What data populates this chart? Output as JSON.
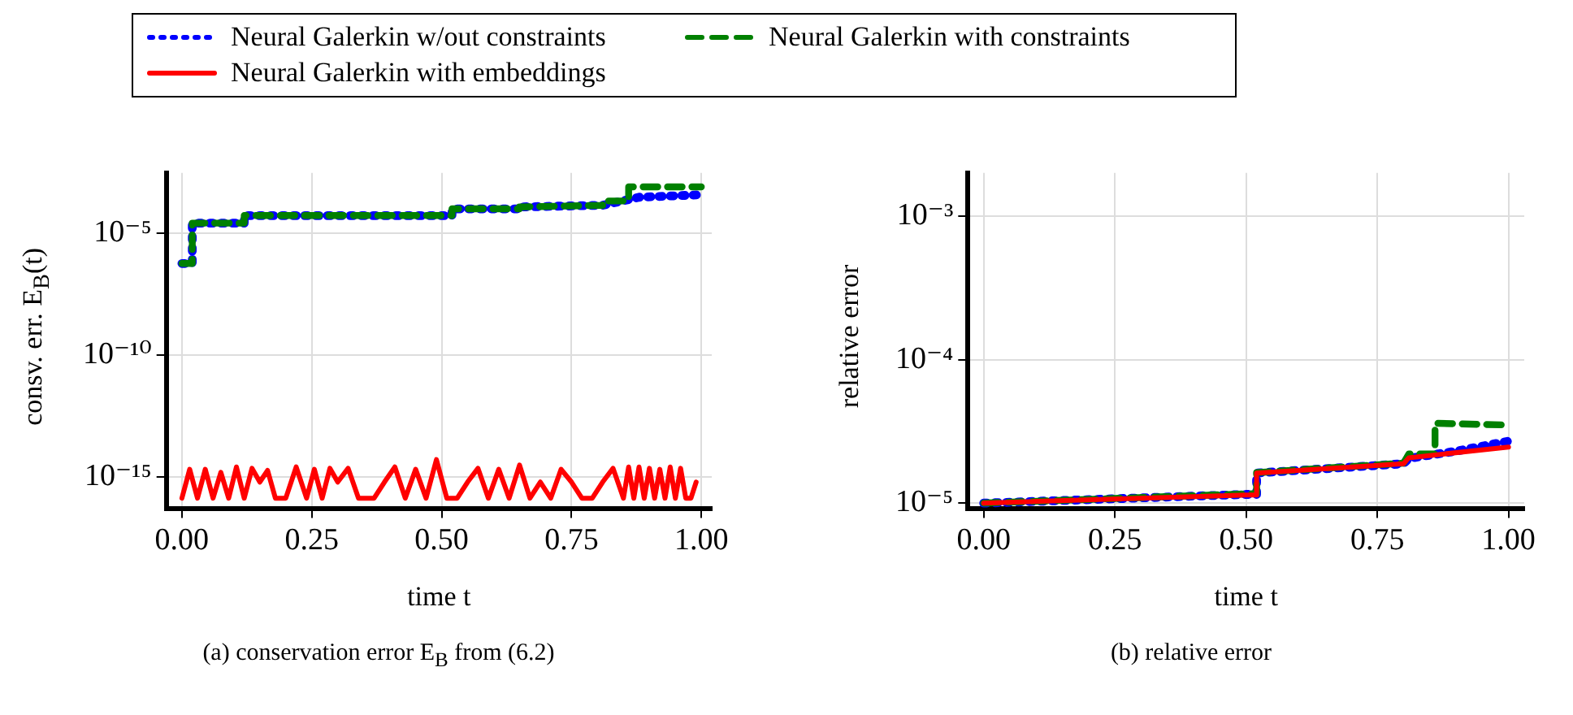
{
  "chart_data": [
    {
      "type": "line",
      "xlabel": "time t",
      "ylabel": "consv. err. E$_{B}$(t)",
      "log": "y",
      "grid": true,
      "legend": "top",
      "marker": "none",
      "xlim": [
        -0.03,
        1.02
      ],
      "ylim": [
        5e-17,
        0.003
      ],
      "xticks": [
        {
          "value": 0,
          "label": "0.00"
        },
        {
          "value": 0.25,
          "label": "0.25"
        },
        {
          "value": 0.5,
          "label": "0.50"
        },
        {
          "value": 0.75,
          "label": "0.75"
        },
        {
          "value": 1,
          "label": "1.00"
        }
      ],
      "yticks": [
        {
          "value": 1e-15,
          "label": "10⁻¹⁵"
        },
        {
          "value": 1e-10,
          "label": "10⁻¹⁰"
        },
        {
          "value": 1e-05,
          "label": "10⁻⁵"
        }
      ],
      "annotations": [
        "(a) conservation error E$_{B}$ from (6.2)"
      ],
      "series": [
        {
          "name": "Neural Galerkin w/out constraints",
          "color": "#0000ff",
          "line_style": "dotted",
          "x": [
            0,
            0.02,
            0.02,
            0.12,
            0.12,
            0.52,
            0.52,
            0.65,
            0.65,
            0.81,
            0.88,
            1.0
          ],
          "values": [
            5.7e-07,
            5.7e-07,
            2.6e-05,
            2.6e-05,
            5.3e-05,
            5.3e-05,
            0.0001,
            0.0001,
            0.00012,
            0.00014,
            0.0003,
            0.00038
          ]
        },
        {
          "name": "Neural Galerkin with constraints",
          "color": "#008000",
          "line_style": "dashed",
          "x": [
            0,
            0.02,
            0.02,
            0.12,
            0.12,
            0.52,
            0.52,
            0.65,
            0.65,
            0.81,
            0.81,
            0.86,
            0.86,
            1.0
          ],
          "values": [
            5.7e-07,
            5.7e-07,
            2.6e-05,
            2.6e-05,
            5.3e-05,
            5.3e-05,
            0.0001,
            0.0001,
            0.00012,
            0.00014,
            0.00021,
            0.00021,
            0.0008,
            0.0008
          ]
        },
        {
          "name": "Neural Galerkin with embeddings",
          "color": "#ff0000",
          "line_style": "solid",
          "x": [
            0,
            0.015,
            0.03,
            0.045,
            0.06,
            0.075,
            0.09,
            0.105,
            0.12,
            0.135,
            0.15,
            0.165,
            0.18,
            0.2,
            0.22,
            0.24,
            0.255,
            0.27,
            0.285,
            0.3,
            0.32,
            0.34,
            0.37,
            0.39,
            0.41,
            0.43,
            0.45,
            0.47,
            0.49,
            0.51,
            0.53,
            0.55,
            0.57,
            0.59,
            0.61,
            0.63,
            0.65,
            0.67,
            0.69,
            0.71,
            0.73,
            0.75,
            0.77,
            0.79,
            0.81,
            0.83,
            0.85,
            0.86,
            0.87,
            0.88,
            0.89,
            0.9,
            0.91,
            0.92,
            0.93,
            0.94,
            0.95,
            0.96,
            0.97,
            0.98,
            0.99
          ],
          "values": [
            1.3e-16,
            2e-15,
            1.3e-16,
            2e-15,
            1.3e-16,
            1.5e-15,
            1.3e-16,
            2.5e-15,
            1.3e-16,
            2.2e-15,
            6e-16,
            1.8e-15,
            1.3e-16,
            1.3e-16,
            2.5e-15,
            1.3e-16,
            2e-15,
            1.3e-16,
            2.2e-15,
            6e-16,
            2.2e-15,
            1.3e-16,
            1.3e-16,
            6e-16,
            2.5e-15,
            1.3e-16,
            2e-15,
            1.3e-16,
            5e-15,
            1.3e-16,
            1.3e-16,
            6e-16,
            2.2e-15,
            1.3e-16,
            2e-15,
            1.3e-16,
            3e-15,
            1.3e-16,
            6e-16,
            1.3e-16,
            2e-15,
            6e-16,
            1.3e-16,
            1.3e-16,
            6e-16,
            2.2e-15,
            1.3e-16,
            2.5e-15,
            1.3e-16,
            2.5e-15,
            1.3e-16,
            2.2e-15,
            1.3e-16,
            2e-15,
            1.3e-16,
            2.5e-15,
            1.3e-16,
            2.2e-15,
            1.3e-16,
            1.3e-16,
            6e-16
          ]
        }
      ]
    },
    {
      "type": "line",
      "xlabel": "time t",
      "ylabel": "relative error",
      "log": "y",
      "grid": true,
      "marker": "none",
      "xlim": [
        -0.03,
        1.03
      ],
      "ylim": [
        9.2e-06,
        0.002
      ],
      "xticks": [
        {
          "value": 0,
          "label": "0.00"
        },
        {
          "value": 0.25,
          "label": "0.25"
        },
        {
          "value": 0.5,
          "label": "0.50"
        },
        {
          "value": 0.75,
          "label": "0.75"
        },
        {
          "value": 1,
          "label": "1.00"
        }
      ],
      "yticks": [
        {
          "value": 1e-05,
          "label": "10⁻⁵"
        },
        {
          "value": 0.0001,
          "label": "10⁻⁴"
        },
        {
          "value": 0.001,
          "label": "10⁻³"
        }
      ],
      "annotations": [
        "(b) relative error"
      ],
      "series": [
        {
          "name": "Neural Galerkin w/out constraints",
          "color": "#0000ff",
          "line_style": "dotted",
          "x": [
            0,
            0.5,
            0.52,
            0.52,
            0.8,
            0.81,
            0.9,
            1.0
          ],
          "values": [
            1e-05,
            1.15e-05,
            1.15e-05,
            1.62e-05,
            1.88e-05,
            2.05e-05,
            2.3e-05,
            2.7e-05
          ]
        },
        {
          "name": "Neural Galerkin with constraints",
          "color": "#008000",
          "line_style": "dashed",
          "x": [
            0,
            0.5,
            0.52,
            0.52,
            0.8,
            0.81,
            0.86,
            0.86,
            1.0
          ],
          "values": [
            1e-05,
            1.16e-05,
            1.16e-05,
            1.63e-05,
            1.9e-05,
            2.2e-05,
            2.2e-05,
            3.6e-05,
            3.5e-05
          ]
        },
        {
          "name": "Neural Galerkin with embeddings",
          "color": "#ff0000",
          "line_style": "solid",
          "x": [
            0,
            0.5,
            0.52,
            0.52,
            0.8,
            0.81,
            1.0
          ],
          "values": [
            1e-05,
            1.14e-05,
            1.14e-05,
            1.62e-05,
            1.88e-05,
            2.07e-05,
            2.46e-05
          ]
        }
      ]
    }
  ]
}
